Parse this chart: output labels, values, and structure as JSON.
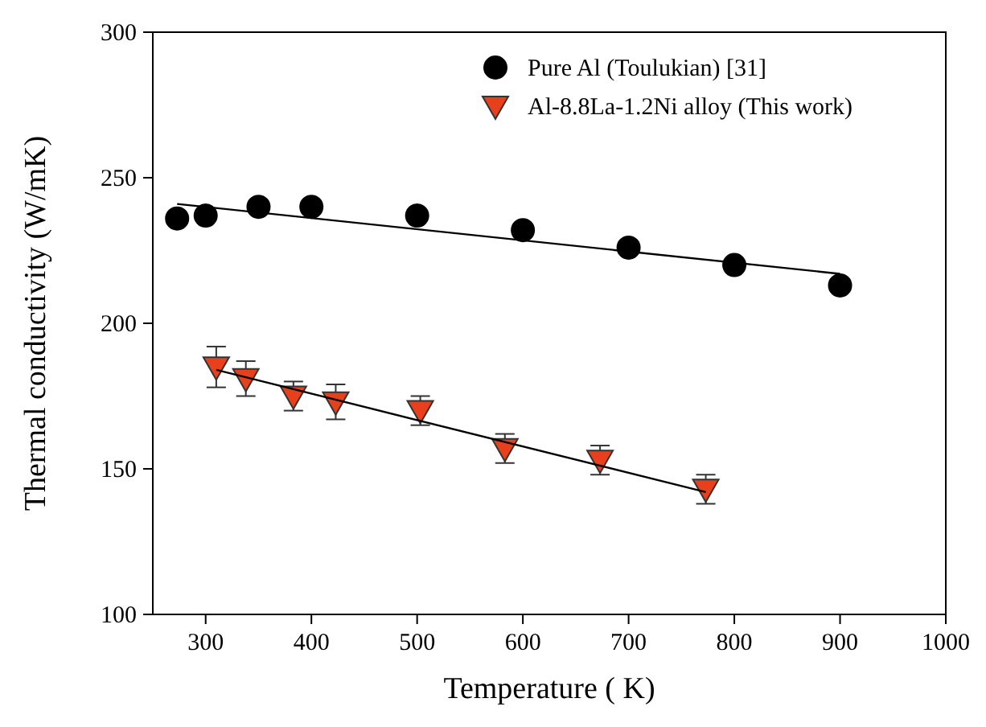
{
  "chart_data": {
    "type": "scatter",
    "xlabel": "Temperature ( K)",
    "ylabel": "Thermal conductivity (W/mK)",
    "xlim": [
      250,
      1000
    ],
    "xticks": [
      300,
      400,
      500,
      600,
      700,
      800,
      900,
      1000
    ],
    "ylim": [
      100,
      300
    ],
    "yticks": [
      100,
      150,
      200,
      250,
      300
    ],
    "grid": false,
    "legend": "top right",
    "series": [
      {
        "name": "Pure Al (Toulukian) [31]",
        "color": "#000000",
        "marker": "circle",
        "x": [
          273,
          300,
          350,
          400,
          500,
          600,
          700,
          800,
          900
        ],
        "values": [
          236,
          237,
          240,
          240,
          237,
          232,
          226,
          220,
          213
        ]
      },
      {
        "name": "Al-8.8La-1.2Ni alloy (This work)",
        "color": "#e8401c",
        "marker": "triangle",
        "x": [
          310,
          338,
          383,
          423,
          503,
          583,
          673,
          773
        ],
        "values": [
          185,
          181,
          175,
          173,
          170,
          157,
          153,
          143
        ],
        "errors": [
          7,
          6,
          5,
          6,
          5,
          5,
          5,
          5
        ]
      },
      {
        "type": "line",
        "color": "#000000",
        "x": [
          273,
          900
        ],
        "values": [
          241,
          217
        ]
      },
      {
        "type": "line",
        "color": "#000000",
        "x": [
          310,
          773
        ],
        "values": [
          184,
          142
        ]
      }
    ]
  }
}
